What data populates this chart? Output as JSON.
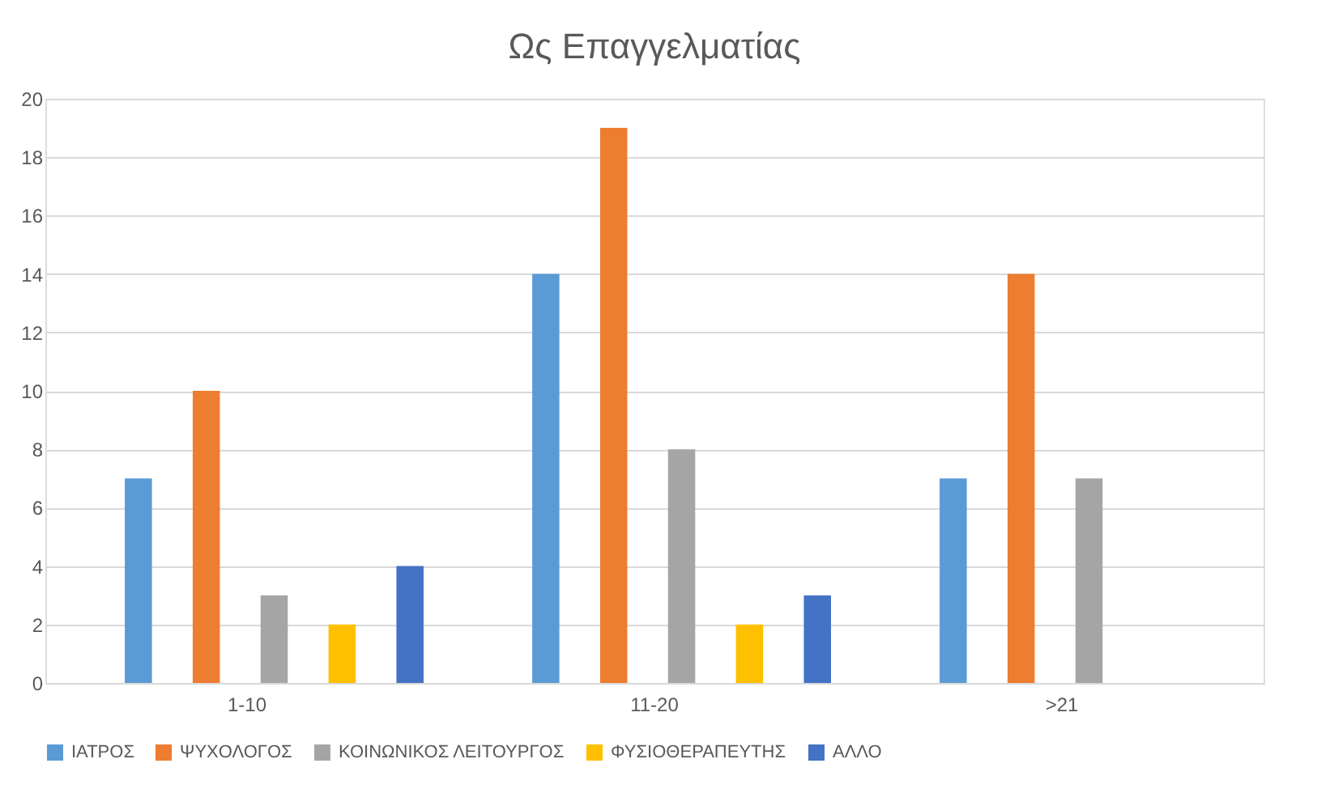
{
  "chart_data": {
    "type": "bar",
    "title": "Ως Επαγγελματίας",
    "categories": [
      "1-10",
      "11-20",
      ">21"
    ],
    "series": [
      {
        "name": "ΙΑΤΡΟΣ",
        "color": "#5b9bd5",
        "values": [
          7,
          14,
          7
        ]
      },
      {
        "name": "ΨΥΧΟΛΟΓΟΣ",
        "color": "#ed7d31",
        "values": [
          10,
          19,
          14
        ]
      },
      {
        "name": "ΚΟΙΝΩΝΙΚΟΣ ΛΕΙΤΟΥΡΓΟΣ",
        "color": "#a5a5a5",
        "values": [
          3,
          8,
          7
        ]
      },
      {
        "name": "ΦΥΣΙΟΘΕΡΑΠΕΥΤΗΣ",
        "color": "#ffc000",
        "values": [
          2,
          2,
          null
        ]
      },
      {
        "name": "ΑΛΛΟ",
        "color": "#4472c4",
        "values": [
          4,
          3,
          null
        ]
      }
    ],
    "ylim": [
      0,
      20
    ],
    "yticks": [
      0,
      2,
      4,
      6,
      8,
      10,
      12,
      14,
      16,
      18,
      20
    ],
    "grid": "y",
    "legend": "bottom"
  }
}
